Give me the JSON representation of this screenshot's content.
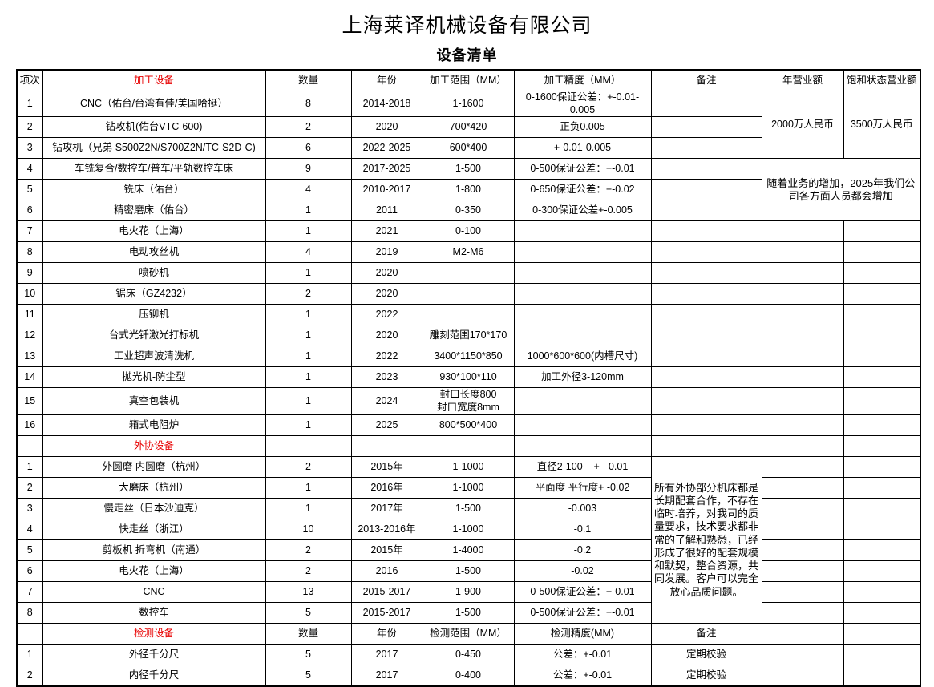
{
  "title": "上海莱译机械设备有限公司",
  "subtitle": "设备清单",
  "colors": {
    "section_red": "#e80000",
    "text": "#000000",
    "border": "#000000"
  },
  "table": {
    "rows": [
      {
        "name": "header-row",
        "header": true,
        "cells": [
          {
            "t": "项次"
          },
          {
            "t": "加工设备",
            "red": true
          },
          {
            "t": "数量"
          },
          {
            "t": "年份"
          },
          {
            "t": "加工范围（MM）"
          },
          {
            "t": "加工精度（MM）"
          },
          {
            "t": "备注"
          },
          {
            "t": "年营业额"
          },
          {
            "t": "饱和状态营业额"
          }
        ]
      },
      {
        "cells": [
          {
            "t": "1"
          },
          {
            "t": "CNC（佑台/台湾有佳/美国哈挺）"
          },
          {
            "t": "8"
          },
          {
            "t": "2014-2018"
          },
          {
            "t": "1-1600"
          },
          {
            "t": "0-1600保证公差：+-0.01-0.005"
          },
          {
            "t": ""
          },
          {
            "t": "2000万人民币",
            "rs": 3
          },
          {
            "t": "3500万人民币",
            "rs": 3
          }
        ]
      },
      {
        "cells": [
          {
            "t": "2"
          },
          {
            "t": "钻攻机(佑台VTC-600)"
          },
          {
            "t": "2"
          },
          {
            "t": "2020"
          },
          {
            "t": "700*420"
          },
          {
            "t": "正负0.005"
          },
          {
            "t": ""
          }
        ]
      },
      {
        "cells": [
          {
            "t": "3"
          },
          {
            "t": "钻攻机（兄弟 S500Z2N/S700Z2N/TC-S2D-C)"
          },
          {
            "t": "6"
          },
          {
            "t": "2022-2025"
          },
          {
            "t": "600*400"
          },
          {
            "t": "+-0.01-0.005"
          },
          {
            "t": ""
          }
        ]
      },
      {
        "cells": [
          {
            "t": "4"
          },
          {
            "t": "车铣复合/数控车/普车/平轨数控车床"
          },
          {
            "t": "9"
          },
          {
            "t": "2017-2025"
          },
          {
            "t": "1-500"
          },
          {
            "t": "0-500保证公差：+-0.01"
          },
          {
            "t": ""
          },
          {
            "t": "随着业务的增加，2025年我们公司各方面人员都会增加",
            "cs": 2,
            "rs": 3,
            "cls": "note"
          }
        ]
      },
      {
        "cells": [
          {
            "t": "5"
          },
          {
            "t": "铣床（佑台）"
          },
          {
            "t": "4"
          },
          {
            "t": "2010-2017"
          },
          {
            "t": "1-800"
          },
          {
            "t": "0-650保证公差：+-0.02"
          },
          {
            "t": ""
          }
        ]
      },
      {
        "cells": [
          {
            "t": "6"
          },
          {
            "t": "精密磨床（佑台）"
          },
          {
            "t": "1"
          },
          {
            "t": "2011"
          },
          {
            "t": "0-350"
          },
          {
            "t": "0-300保证公差+-0.005"
          },
          {
            "t": ""
          }
        ]
      },
      {
        "cells": [
          {
            "t": "7"
          },
          {
            "t": "电火花（上海）"
          },
          {
            "t": "1"
          },
          {
            "t": "2021"
          },
          {
            "t": "0-100"
          },
          {
            "t": ""
          },
          {
            "t": ""
          },
          {
            "t": ""
          },
          {
            "t": ""
          }
        ]
      },
      {
        "cells": [
          {
            "t": "8"
          },
          {
            "t": "电动攻丝机"
          },
          {
            "t": "4"
          },
          {
            "t": "2019"
          },
          {
            "t": "M2-M6"
          },
          {
            "t": ""
          },
          {
            "t": ""
          },
          {
            "t": ""
          },
          {
            "t": ""
          }
        ]
      },
      {
        "cells": [
          {
            "t": "9"
          },
          {
            "t": "喷砂机"
          },
          {
            "t": "1"
          },
          {
            "t": "2020"
          },
          {
            "t": ""
          },
          {
            "t": ""
          },
          {
            "t": ""
          },
          {
            "t": ""
          },
          {
            "t": ""
          }
        ]
      },
      {
        "cells": [
          {
            "t": "10"
          },
          {
            "t": "锯床（GZ4232）"
          },
          {
            "t": "2"
          },
          {
            "t": "2020"
          },
          {
            "t": ""
          },
          {
            "t": ""
          },
          {
            "t": ""
          },
          {
            "t": ""
          },
          {
            "t": ""
          }
        ]
      },
      {
        "cells": [
          {
            "t": "11"
          },
          {
            "t": "压铆机"
          },
          {
            "t": "1"
          },
          {
            "t": "2022"
          },
          {
            "t": ""
          },
          {
            "t": ""
          },
          {
            "t": ""
          },
          {
            "t": ""
          },
          {
            "t": ""
          }
        ]
      },
      {
        "cells": [
          {
            "t": "12"
          },
          {
            "t": "台式光钎激光打标机"
          },
          {
            "t": "1"
          },
          {
            "t": "2020"
          },
          {
            "t": "雕刻范围170*170"
          },
          {
            "t": ""
          },
          {
            "t": ""
          },
          {
            "t": ""
          },
          {
            "t": ""
          }
        ]
      },
      {
        "cells": [
          {
            "t": "13"
          },
          {
            "t": "工业超声波清洗机"
          },
          {
            "t": "1"
          },
          {
            "t": "2022"
          },
          {
            "t": "3400*1150*850"
          },
          {
            "t": "1000*600*600(内槽尺寸)"
          },
          {
            "t": ""
          },
          {
            "t": ""
          },
          {
            "t": ""
          }
        ]
      },
      {
        "cells": [
          {
            "t": "14"
          },
          {
            "t": "抛光机-防尘型"
          },
          {
            "t": "1"
          },
          {
            "t": "2023"
          },
          {
            "t": "930*100*110"
          },
          {
            "t": "加工外径3-120mm"
          },
          {
            "t": ""
          },
          {
            "t": ""
          },
          {
            "t": ""
          }
        ]
      },
      {
        "tall": true,
        "cells": [
          {
            "t": "15"
          },
          {
            "t": "真空包装机"
          },
          {
            "t": "1"
          },
          {
            "t": "2024"
          },
          {
            "t": "封口长度800\n封口宽度8mm"
          },
          {
            "t": ""
          },
          {
            "t": ""
          },
          {
            "t": ""
          },
          {
            "t": ""
          }
        ]
      },
      {
        "cells": [
          {
            "t": "16"
          },
          {
            "t": "箱式电阻炉"
          },
          {
            "t": "1"
          },
          {
            "t": "2025"
          },
          {
            "t": "800*500*400"
          },
          {
            "t": ""
          },
          {
            "t": ""
          },
          {
            "t": ""
          },
          {
            "t": ""
          }
        ]
      },
      {
        "name": "section-row-outsourcing",
        "cells": [
          {
            "t": ""
          },
          {
            "t": "外协设备",
            "red": true
          },
          {
            "t": ""
          },
          {
            "t": ""
          },
          {
            "t": ""
          },
          {
            "t": ""
          },
          {
            "t": ""
          },
          {
            "t": ""
          },
          {
            "t": ""
          }
        ]
      },
      {
        "cells": [
          {
            "t": "1"
          },
          {
            "t": "外圆磨 内圆磨（杭州）"
          },
          {
            "t": "2"
          },
          {
            "t": "2015年"
          },
          {
            "t": "1-1000"
          },
          {
            "t": "直径2-100    + - 0.01"
          },
          {
            "t": "所有外协部分机床都是长期配套合作，不存在临时培养，对我司的质量要求，技术要求都非常的了解和熟悉，已经形成了很好的配套规模和默契，整合资源，共同发展。客户可以完全放心品质问题。",
            "rs": 8,
            "cls": "note"
          },
          {
            "t": ""
          },
          {
            "t": ""
          }
        ]
      },
      {
        "cells": [
          {
            "t": "2"
          },
          {
            "t": "大磨床（杭州）"
          },
          {
            "t": "1"
          },
          {
            "t": "2016年"
          },
          {
            "t": "1-1000"
          },
          {
            "t": "平面度 平行度+ -0.02"
          },
          {
            "t": ""
          },
          {
            "t": ""
          }
        ]
      },
      {
        "cells": [
          {
            "t": "3"
          },
          {
            "t": "慢走丝（日本沙迪克）"
          },
          {
            "t": "1"
          },
          {
            "t": "2017年"
          },
          {
            "t": "1-500"
          },
          {
            "t": "-0.003"
          },
          {
            "t": ""
          },
          {
            "t": ""
          }
        ]
      },
      {
        "cells": [
          {
            "t": "4"
          },
          {
            "t": "快走丝（浙江）"
          },
          {
            "t": "10"
          },
          {
            "t": "2013-2016年"
          },
          {
            "t": "1-1000"
          },
          {
            "t": "-0.1"
          },
          {
            "t": ""
          },
          {
            "t": ""
          }
        ]
      },
      {
        "cells": [
          {
            "t": "5"
          },
          {
            "t": "剪板机 折弯机（南通）"
          },
          {
            "t": "2"
          },
          {
            "t": "2015年"
          },
          {
            "t": "1-4000"
          },
          {
            "t": "-0.2"
          },
          {
            "t": ""
          },
          {
            "t": ""
          }
        ]
      },
      {
        "cells": [
          {
            "t": "6"
          },
          {
            "t": "电火花（上海）"
          },
          {
            "t": "2"
          },
          {
            "t": "2016"
          },
          {
            "t": "1-500"
          },
          {
            "t": "-0.02"
          },
          {
            "t": ""
          },
          {
            "t": ""
          }
        ]
      },
      {
        "cells": [
          {
            "t": "7"
          },
          {
            "t": "CNC"
          },
          {
            "t": "13"
          },
          {
            "t": "2015-2017"
          },
          {
            "t": "1-900"
          },
          {
            "t": "0-500保证公差：+-0.01"
          },
          {
            "t": ""
          },
          {
            "t": ""
          }
        ]
      },
      {
        "cells": [
          {
            "t": "8"
          },
          {
            "t": "数控车"
          },
          {
            "t": "5"
          },
          {
            "t": "2015-2017"
          },
          {
            "t": "1-500"
          },
          {
            "t": "0-500保证公差：+-0.01"
          },
          {
            "t": ""
          },
          {
            "t": ""
          }
        ]
      },
      {
        "name": "section-row-inspection",
        "cells": [
          {
            "t": ""
          },
          {
            "t": "检测设备",
            "red": true
          },
          {
            "t": "数量"
          },
          {
            "t": "年份"
          },
          {
            "t": "检测范围（MM）"
          },
          {
            "t": "检测精度(MM)"
          },
          {
            "t": "备注"
          },
          {
            "t": ""
          },
          {
            "t": ""
          }
        ]
      },
      {
        "cells": [
          {
            "t": "1"
          },
          {
            "t": "外径千分尺"
          },
          {
            "t": "5"
          },
          {
            "t": "2017"
          },
          {
            "t": "0-450"
          },
          {
            "t": "公差：+-0.01"
          },
          {
            "t": "定期校验"
          },
          {
            "t": ""
          },
          {
            "t": ""
          }
        ]
      },
      {
        "cells": [
          {
            "t": "2"
          },
          {
            "t": "内径千分尺"
          },
          {
            "t": "5"
          },
          {
            "t": "2017"
          },
          {
            "t": "0-400"
          },
          {
            "t": "公差：+-0.01"
          },
          {
            "t": "定期校验"
          },
          {
            "t": ""
          },
          {
            "t": ""
          }
        ]
      }
    ]
  }
}
